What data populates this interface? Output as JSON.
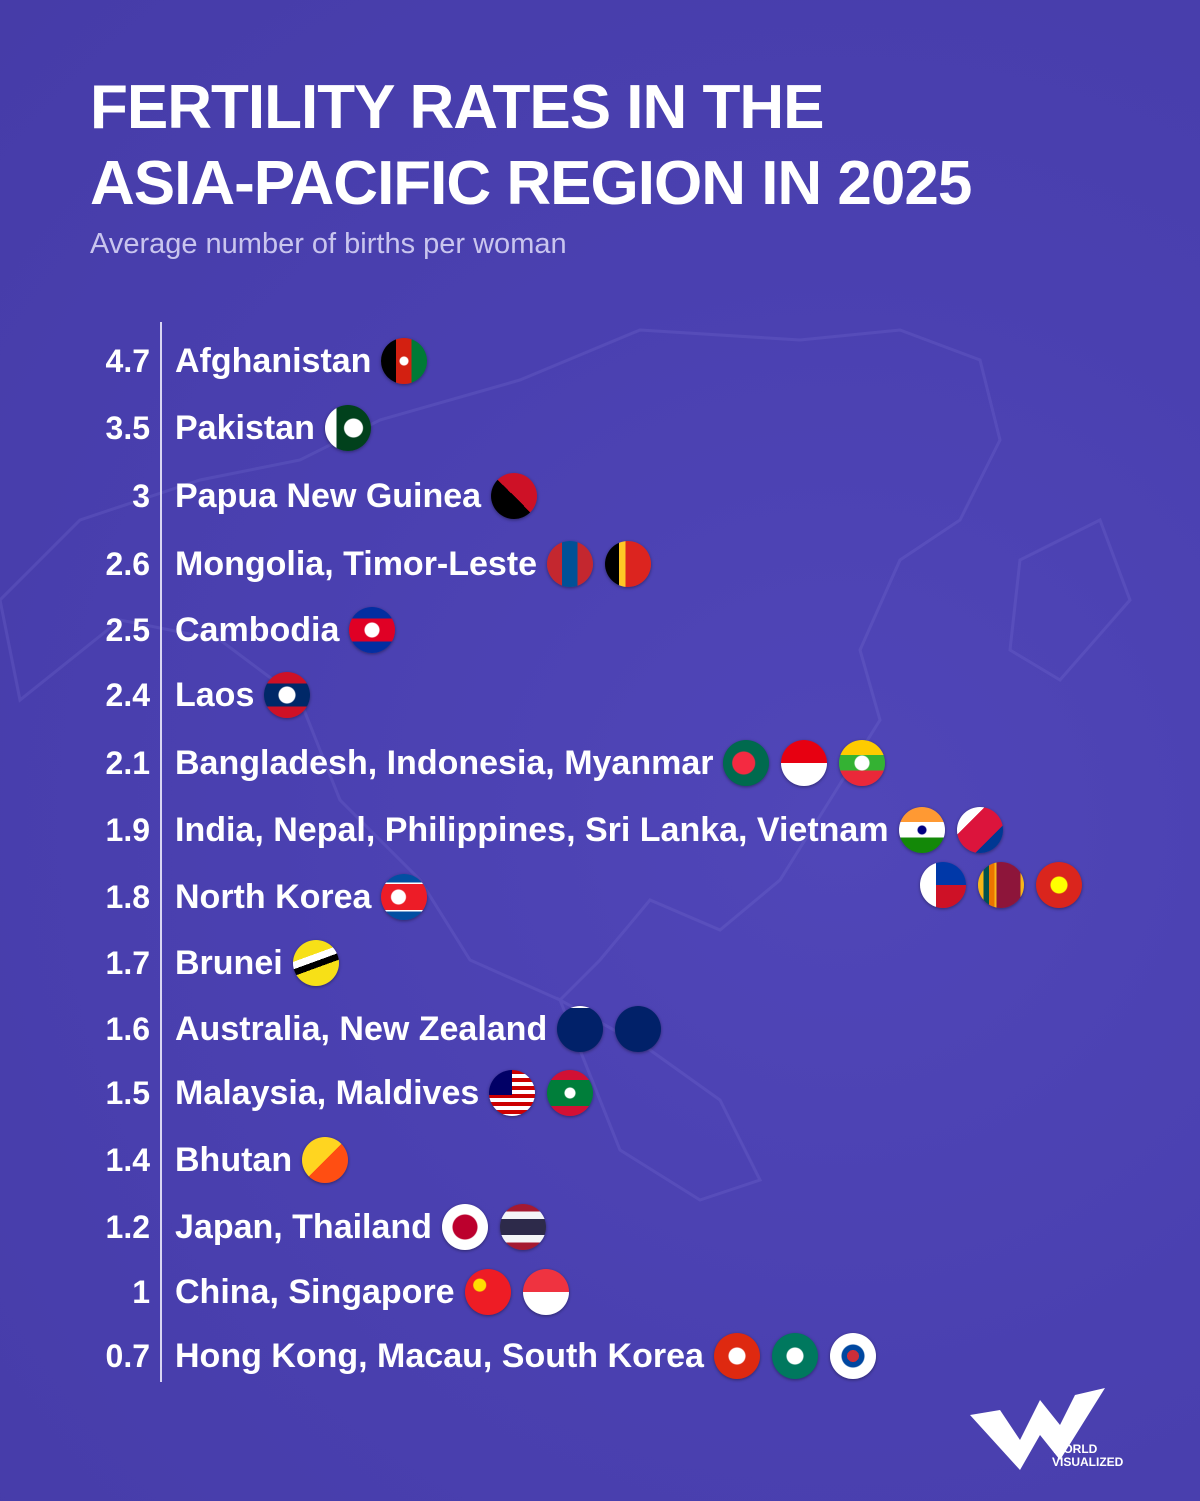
{
  "title_line1": "FERTILITY RATES IN THE",
  "title_line2": "ASIA-PACIFIC REGION IN 2025",
  "subtitle": "Average number of births per woman",
  "colors": {
    "background": "#4a40b0",
    "text": "#ffffff",
    "subtitle": "#c9c5ee"
  },
  "logo": {
    "text1": "WORLD",
    "text2": "VISUALIZED"
  },
  "chart_data": {
    "type": "table",
    "title": "FERTILITY RATES IN THE ASIA-PACIFIC REGION IN 2025",
    "subtitle": "Average number of births per woman",
    "rows": [
      {
        "value": "4.7",
        "label": "Afghanistan",
        "flags": [
          "afghanistan"
        ]
      },
      {
        "value": "3.5",
        "label": "Pakistan",
        "flags": [
          "pakistan"
        ]
      },
      {
        "value": "3",
        "label": "Papua New Guinea",
        "flags": [
          "png"
        ]
      },
      {
        "value": "2.6",
        "label": "Mongolia, Timor-Leste",
        "flags": [
          "mongolia",
          "timor"
        ]
      },
      {
        "value": "2.5",
        "label": "Cambodia",
        "flags": [
          "cambodia"
        ]
      },
      {
        "value": "2.4",
        "label": "Laos",
        "flags": [
          "laos"
        ]
      },
      {
        "value": "2.1",
        "label": "Bangladesh, Indonesia, Myanmar",
        "flags": [
          "bangladesh",
          "indonesia",
          "myanmar"
        ]
      },
      {
        "value": "1.9",
        "label": "India, Nepal, Philippines, Sri Lanka, Vietnam",
        "flags": [
          "india",
          "nepal"
        ],
        "extra_flags": [
          "philippines",
          "srilanka",
          "vietnam"
        ]
      },
      {
        "value": "1.8",
        "label": "North Korea",
        "flags": [
          "northkorea"
        ]
      },
      {
        "value": "1.7",
        "label": "Brunei",
        "flags": [
          "brunei"
        ]
      },
      {
        "value": "1.6",
        "label": "Australia, New Zealand",
        "flags": [
          "australia",
          "newzealand"
        ]
      },
      {
        "value": "1.5",
        "label": "Malaysia, Maldives",
        "flags": [
          "malaysia",
          "maldives"
        ]
      },
      {
        "value": "1.4",
        "label": "Bhutan",
        "flags": [
          "bhutan"
        ]
      },
      {
        "value": "1.2",
        "label": "Japan, Thailand",
        "flags": [
          "japan",
          "thailand"
        ]
      },
      {
        "value": "1",
        "label": "China, Singapore",
        "flags": [
          "china",
          "singapore"
        ]
      },
      {
        "value": "0.7",
        "label": "Hong Kong, Macau, South Korea",
        "flags": [
          "hongkong",
          "macau",
          "southkorea"
        ]
      }
    ]
  }
}
